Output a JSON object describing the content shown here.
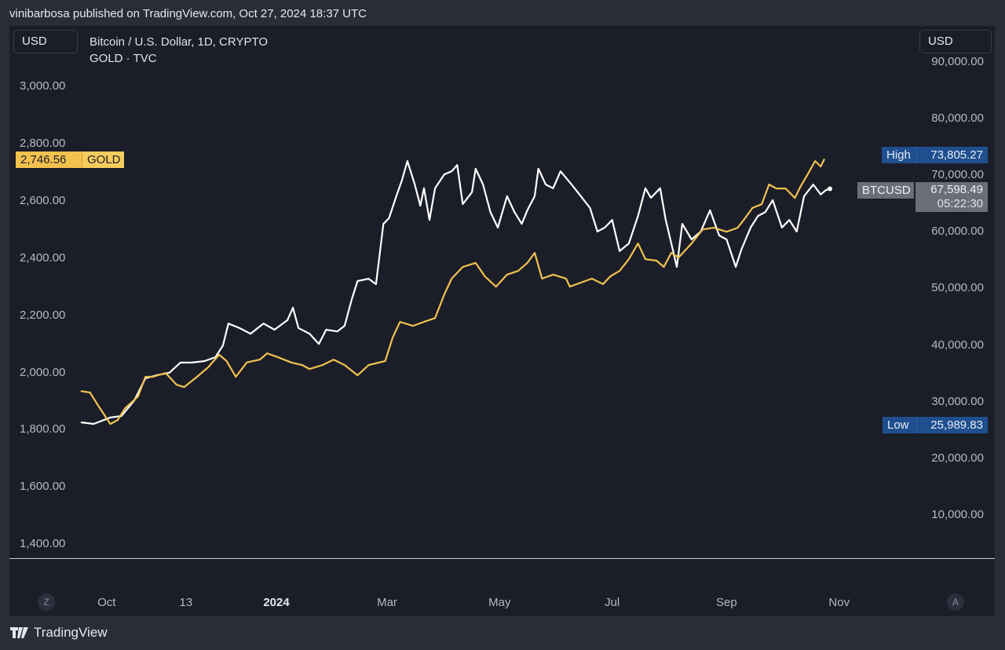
{
  "header": {
    "published": "vinibarbosa published on TradingView.com, Oct 27, 2024 18:37 UTC"
  },
  "left_currency": "USD",
  "right_currency": "USD",
  "legend": {
    "line1": "Bitcoin / U.S. Dollar, 1D, CRYPTO",
    "line2": "GOLD · TVC"
  },
  "tags": {
    "gold_value": "2,746.56",
    "gold_name": "GOLD",
    "high_label": "High",
    "high_value": "73,805.27",
    "btc_name": "BTCUSD",
    "btc_value": "67,598.49",
    "btc_countdown": "05:22:30",
    "low_label": "Low",
    "low_value": "25,989.83"
  },
  "colors": {
    "gold": "#f2c14e",
    "btc": "#ffffff",
    "high_low_tag": "#1f4f8f",
    "btc_tag": "#6b6e78",
    "background": "#1b1e29"
  },
  "axis_buttons": {
    "left": "Z",
    "right": "A"
  },
  "footer": {
    "brand": "TradingView"
  },
  "chart_data": {
    "type": "line",
    "left_axis": {
      "series": "GOLD",
      "ticks": [
        "3,000.00",
        "2,800.00",
        "2,600.00",
        "2,400.00",
        "2,200.00",
        "2,000.00",
        "1,800.00",
        "1,600.00",
        "1,400.00"
      ],
      "tick_values": [
        3000,
        2800,
        2600,
        2400,
        2200,
        2000,
        1800,
        1600,
        1400
      ]
    },
    "right_axis": {
      "series": "BTCUSD",
      "ticks": [
        "90,000.00",
        "80,000.00",
        "70,000.00",
        "60,000.00",
        "50,000.00",
        "40,000.00",
        "30,000.00",
        "20,000.00",
        "10,000.00"
      ],
      "tick_values": [
        90000,
        80000,
        70000,
        60000,
        50000,
        40000,
        30000,
        20000,
        10000
      ]
    },
    "x_ticks": [
      {
        "label": "Oct",
        "date": "2023-10-01"
      },
      {
        "label": "13",
        "date": "2023-11-13"
      },
      {
        "label": "2024",
        "date": "2024-01-01",
        "bold": true
      },
      {
        "label": "Mar",
        "date": "2024-03-01"
      },
      {
        "label": "May",
        "date": "2024-05-01"
      },
      {
        "label": "Jul",
        "date": "2024-07-01"
      },
      {
        "label": "Sep",
        "date": "2024-09-01"
      },
      {
        "label": "Nov",
        "date": "2024-11-01"
      }
    ],
    "series": [
      {
        "name": "BTCUSD",
        "axis": "right",
        "color": "#ffffff",
        "points": [
          [
            "2023-09-17",
            26340
          ],
          [
            "2023-09-24",
            26060
          ],
          [
            "2023-10-03",
            27200
          ],
          [
            "2023-10-09",
            27450
          ],
          [
            "2023-10-16",
            30200
          ],
          [
            "2023-10-22",
            34100
          ],
          [
            "2023-10-28",
            34650
          ],
          [
            "2023-11-04",
            35100
          ],
          [
            "2023-11-10",
            36900
          ],
          [
            "2023-11-16",
            36900
          ],
          [
            "2023-11-23",
            37150
          ],
          [
            "2023-11-29",
            37850
          ],
          [
            "2023-12-03",
            39900
          ],
          [
            "2023-12-06",
            43800
          ],
          [
            "2023-12-12",
            43000
          ],
          [
            "2023-12-18",
            42000
          ],
          [
            "2023-12-25",
            43800
          ],
          [
            "2023-12-31",
            42700
          ],
          [
            "2024-01-07",
            44400
          ],
          [
            "2024-01-10",
            46600
          ],
          [
            "2024-01-13",
            43000
          ],
          [
            "2024-01-19",
            42000
          ],
          [
            "2024-01-24",
            40200
          ],
          [
            "2024-01-28",
            42700
          ],
          [
            "2024-02-03",
            42400
          ],
          [
            "2024-02-07",
            43400
          ],
          [
            "2024-02-11",
            48250
          ],
          [
            "2024-02-14",
            51300
          ],
          [
            "2024-02-20",
            51700
          ],
          [
            "2024-02-24",
            50750
          ],
          [
            "2024-02-28",
            61400
          ],
          [
            "2024-03-02",
            62400
          ],
          [
            "2024-03-06",
            66300
          ],
          [
            "2024-03-09",
            69050
          ],
          [
            "2024-03-12",
            72500
          ],
          [
            "2024-03-16",
            68350
          ],
          [
            "2024-03-19",
            64600
          ],
          [
            "2024-03-21",
            67700
          ],
          [
            "2024-03-24",
            62100
          ],
          [
            "2024-03-27",
            67700
          ],
          [
            "2024-04-01",
            70150
          ],
          [
            "2024-04-05",
            70700
          ],
          [
            "2024-04-08",
            71800
          ],
          [
            "2024-04-11",
            64900
          ],
          [
            "2024-04-16",
            67000
          ],
          [
            "2024-04-18",
            71150
          ],
          [
            "2024-04-22",
            68350
          ],
          [
            "2024-04-26",
            63500
          ],
          [
            "2024-04-30",
            60750
          ],
          [
            "2024-05-05",
            66300
          ],
          [
            "2024-05-09",
            63500
          ],
          [
            "2024-05-13",
            61400
          ],
          [
            "2024-05-16",
            63800
          ],
          [
            "2024-05-20",
            66300
          ],
          [
            "2024-05-22",
            71150
          ],
          [
            "2024-05-26",
            68350
          ],
          [
            "2024-05-30",
            67700
          ],
          [
            "2024-06-03",
            70700
          ],
          [
            "2024-06-09",
            68350
          ],
          [
            "2024-06-14",
            66300
          ],
          [
            "2024-06-19",
            64200
          ],
          [
            "2024-06-23",
            60050
          ],
          [
            "2024-06-27",
            60750
          ],
          [
            "2024-07-01",
            62100
          ],
          [
            "2024-07-05",
            56600
          ],
          [
            "2024-07-10",
            57950
          ],
          [
            "2024-07-15",
            62800
          ],
          [
            "2024-07-19",
            67700
          ],
          [
            "2024-07-22",
            66000
          ],
          [
            "2024-07-27",
            67700
          ],
          [
            "2024-07-30",
            62100
          ],
          [
            "2024-08-03",
            56600
          ],
          [
            "2024-08-05",
            53800
          ],
          [
            "2024-08-08",
            61400
          ],
          [
            "2024-08-13",
            58650
          ],
          [
            "2024-08-18",
            60050
          ],
          [
            "2024-08-23",
            63800
          ],
          [
            "2024-08-28",
            59350
          ],
          [
            "2024-09-01",
            58650
          ],
          [
            "2024-09-06",
            53800
          ],
          [
            "2024-09-09",
            56850
          ],
          [
            "2024-09-14",
            60750
          ],
          [
            "2024-09-18",
            62800
          ],
          [
            "2024-09-22",
            63500
          ],
          [
            "2024-09-26",
            65600
          ],
          [
            "2024-10-01",
            60750
          ],
          [
            "2024-10-05",
            62100
          ],
          [
            "2024-10-09",
            60050
          ],
          [
            "2024-10-13",
            66300
          ],
          [
            "2024-10-18",
            68350
          ],
          [
            "2024-10-22",
            66600
          ],
          [
            "2024-10-25",
            67400
          ],
          [
            "2024-10-27",
            67598.49
          ]
        ]
      },
      {
        "name": "GOLD",
        "axis": "left",
        "color": "#f2c14e",
        "points": [
          [
            "2023-09-17",
            1935
          ],
          [
            "2023-09-22",
            1930
          ],
          [
            "2023-09-26",
            1889
          ],
          [
            "2023-10-03",
            1820
          ],
          [
            "2023-10-07",
            1834
          ],
          [
            "2023-10-11",
            1875
          ],
          [
            "2023-10-18",
            1916
          ],
          [
            "2023-10-22",
            1985
          ],
          [
            "2023-10-26",
            1985
          ],
          [
            "2023-11-02",
            1998
          ],
          [
            "2023-11-08",
            1957
          ],
          [
            "2023-11-12",
            1949
          ],
          [
            "2023-11-19",
            1985
          ],
          [
            "2023-11-25",
            2018
          ],
          [
            "2023-12-01",
            2062
          ],
          [
            "2023-12-05",
            2040
          ],
          [
            "2023-12-10",
            1985
          ],
          [
            "2023-12-16",
            2035
          ],
          [
            "2023-12-23",
            2045
          ],
          [
            "2023-12-27",
            2067
          ],
          [
            "2024-01-02",
            2053
          ],
          [
            "2024-01-09",
            2035
          ],
          [
            "2024-01-15",
            2026
          ],
          [
            "2024-01-19",
            2012
          ],
          [
            "2024-01-26",
            2026
          ],
          [
            "2024-02-01",
            2045
          ],
          [
            "2024-02-07",
            2026
          ],
          [
            "2024-02-14",
            1990
          ],
          [
            "2024-02-20",
            2026
          ],
          [
            "2024-02-29",
            2040
          ],
          [
            "2024-03-04",
            2122
          ],
          [
            "2024-03-08",
            2177
          ],
          [
            "2024-03-15",
            2163
          ],
          [
            "2024-03-21",
            2177
          ],
          [
            "2024-03-27",
            2190
          ],
          [
            "2024-04-01",
            2273
          ],
          [
            "2024-04-05",
            2328
          ],
          [
            "2024-04-11",
            2369
          ],
          [
            "2024-04-18",
            2383
          ],
          [
            "2024-04-23",
            2336
          ],
          [
            "2024-04-29",
            2300
          ],
          [
            "2024-05-05",
            2342
          ],
          [
            "2024-05-11",
            2355
          ],
          [
            "2024-05-16",
            2383
          ],
          [
            "2024-05-20",
            2418
          ],
          [
            "2024-05-24",
            2328
          ],
          [
            "2024-05-30",
            2342
          ],
          [
            "2024-06-06",
            2328
          ],
          [
            "2024-06-08",
            2300
          ],
          [
            "2024-06-14",
            2314
          ],
          [
            "2024-06-20",
            2328
          ],
          [
            "2024-06-26",
            2309
          ],
          [
            "2024-06-30",
            2336
          ],
          [
            "2024-07-05",
            2355
          ],
          [
            "2024-07-10",
            2396
          ],
          [
            "2024-07-15",
            2451
          ],
          [
            "2024-07-19",
            2396
          ],
          [
            "2024-07-25",
            2391
          ],
          [
            "2024-07-29",
            2369
          ],
          [
            "2024-08-02",
            2418
          ],
          [
            "2024-08-06",
            2402
          ],
          [
            "2024-08-13",
            2451
          ],
          [
            "2024-08-19",
            2500
          ],
          [
            "2024-08-25",
            2506
          ],
          [
            "2024-09-01",
            2492
          ],
          [
            "2024-09-07",
            2506
          ],
          [
            "2024-09-11",
            2539
          ],
          [
            "2024-09-15",
            2575
          ],
          [
            "2024-09-20",
            2588
          ],
          [
            "2024-09-24",
            2657
          ],
          [
            "2024-09-28",
            2643
          ],
          [
            "2024-10-03",
            2643
          ],
          [
            "2024-10-08",
            2610
          ],
          [
            "2024-10-11",
            2649
          ],
          [
            "2024-10-15",
            2693
          ],
          [
            "2024-10-19",
            2739
          ],
          [
            "2024-10-22",
            2720
          ],
          [
            "2024-10-24",
            2746.56
          ]
        ]
      }
    ]
  }
}
